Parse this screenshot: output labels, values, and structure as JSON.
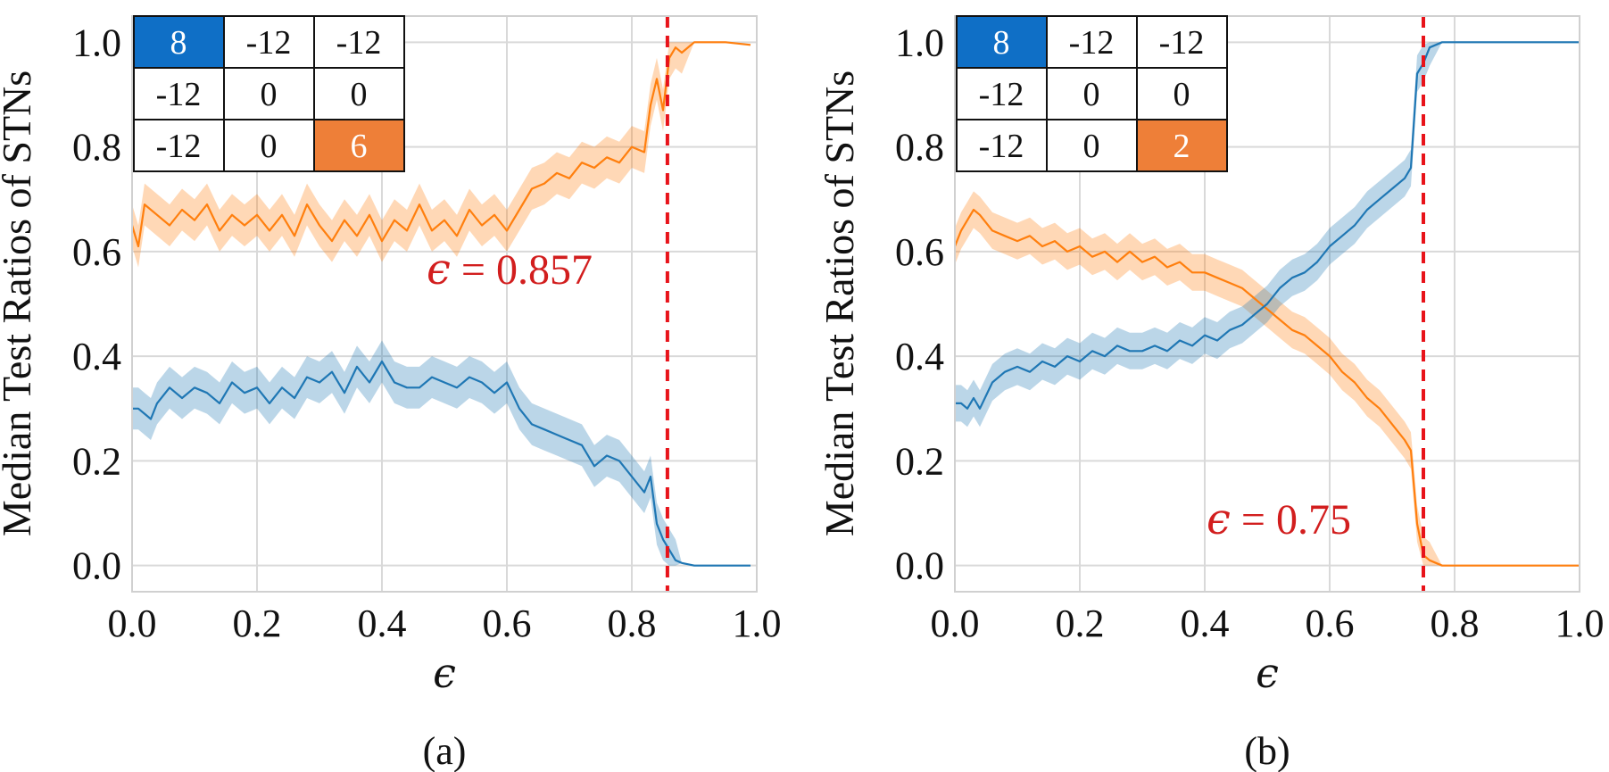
{
  "colors": {
    "blue": "#1f77b4",
    "orange": "#ff7f0e",
    "threshold": "#e8131a",
    "annotation": "#d21e1e",
    "cell_blue": "#0f6fc6",
    "cell_orange": "#ee7f38",
    "grid": "#d9d9d9"
  },
  "chart_data": [
    {
      "type": "line",
      "panel_label": "(a)",
      "xlabel": "ϵ",
      "ylabel": "Median Test Ratios of STNs",
      "xlim": [
        0.0,
        1.0
      ],
      "ylim": [
        -0.05,
        1.05
      ],
      "xticks": [
        0.0,
        0.2,
        0.4,
        0.6,
        0.8,
        1.0
      ],
      "xtick_labels": [
        "0.0",
        "0.2",
        "0.4",
        "0.6",
        "0.8",
        "1.0"
      ],
      "yticks": [
        0.0,
        0.2,
        0.4,
        0.6,
        0.8,
        1.0
      ],
      "ytick_labels": [
        "0.0",
        "0.2",
        "0.4",
        "0.6",
        "0.8",
        "1.0"
      ],
      "grid": true,
      "threshold": {
        "x": 0.857,
        "label": "ϵ = 0.857",
        "eps_text": "ϵ",
        "value_text": " = 0.857"
      },
      "payoff_matrix": [
        [
          "8",
          "-12",
          "-12"
        ],
        [
          "-12",
          "0",
          "0"
        ],
        [
          "-12",
          "0",
          "6"
        ]
      ],
      "highlighted_cells": {
        "blue": [
          0,
          0
        ],
        "orange": [
          2,
          2
        ]
      },
      "band_halfwidth": 0.04,
      "series": [
        {
          "name": "orange",
          "color": "#ff7f0e",
          "points": [
            [
              0.0,
              0.65
            ],
            [
              0.01,
              0.61
            ],
            [
              0.02,
              0.69
            ],
            [
              0.04,
              0.67
            ],
            [
              0.06,
              0.65
            ],
            [
              0.08,
              0.68
            ],
            [
              0.1,
              0.66
            ],
            [
              0.12,
              0.69
            ],
            [
              0.14,
              0.64
            ],
            [
              0.16,
              0.67
            ],
            [
              0.18,
              0.65
            ],
            [
              0.2,
              0.67
            ],
            [
              0.22,
              0.64
            ],
            [
              0.24,
              0.67
            ],
            [
              0.26,
              0.63
            ],
            [
              0.28,
              0.69
            ],
            [
              0.3,
              0.65
            ],
            [
              0.32,
              0.62
            ],
            [
              0.34,
              0.66
            ],
            [
              0.36,
              0.63
            ],
            [
              0.38,
              0.67
            ],
            [
              0.4,
              0.62
            ],
            [
              0.42,
              0.66
            ],
            [
              0.44,
              0.64
            ],
            [
              0.46,
              0.69
            ],
            [
              0.48,
              0.64
            ],
            [
              0.5,
              0.66
            ],
            [
              0.52,
              0.63
            ],
            [
              0.54,
              0.68
            ],
            [
              0.56,
              0.65
            ],
            [
              0.58,
              0.67
            ],
            [
              0.6,
              0.64
            ],
            [
              0.62,
              0.68
            ],
            [
              0.64,
              0.72
            ],
            [
              0.66,
              0.73
            ],
            [
              0.68,
              0.75
            ],
            [
              0.7,
              0.74
            ],
            [
              0.72,
              0.77
            ],
            [
              0.74,
              0.76
            ],
            [
              0.76,
              0.78
            ],
            [
              0.78,
              0.77
            ],
            [
              0.8,
              0.8
            ],
            [
              0.82,
              0.79
            ],
            [
              0.83,
              0.88
            ],
            [
              0.84,
              0.93
            ],
            [
              0.85,
              0.87
            ],
            [
              0.86,
              0.97
            ],
            [
              0.87,
              0.99
            ],
            [
              0.88,
              0.98
            ],
            [
              0.9,
              1.0
            ],
            [
              0.92,
              1.0
            ],
            [
              0.95,
              1.0
            ],
            [
              0.99,
              0.995
            ]
          ]
        },
        {
          "name": "blue",
          "color": "#1f77b4",
          "points": [
            [
              0.0,
              0.3
            ],
            [
              0.01,
              0.3
            ],
            [
              0.02,
              0.29
            ],
            [
              0.03,
              0.28
            ],
            [
              0.04,
              0.31
            ],
            [
              0.06,
              0.34
            ],
            [
              0.08,
              0.32
            ],
            [
              0.1,
              0.34
            ],
            [
              0.12,
              0.33
            ],
            [
              0.14,
              0.31
            ],
            [
              0.16,
              0.35
            ],
            [
              0.18,
              0.33
            ],
            [
              0.2,
              0.34
            ],
            [
              0.22,
              0.31
            ],
            [
              0.24,
              0.34
            ],
            [
              0.26,
              0.32
            ],
            [
              0.28,
              0.36
            ],
            [
              0.3,
              0.35
            ],
            [
              0.32,
              0.37
            ],
            [
              0.34,
              0.33
            ],
            [
              0.36,
              0.38
            ],
            [
              0.38,
              0.35
            ],
            [
              0.4,
              0.39
            ],
            [
              0.42,
              0.35
            ],
            [
              0.44,
              0.34
            ],
            [
              0.46,
              0.34
            ],
            [
              0.48,
              0.36
            ],
            [
              0.5,
              0.35
            ],
            [
              0.52,
              0.34
            ],
            [
              0.54,
              0.36
            ],
            [
              0.56,
              0.35
            ],
            [
              0.58,
              0.33
            ],
            [
              0.6,
              0.35
            ],
            [
              0.62,
              0.3
            ],
            [
              0.64,
              0.27
            ],
            [
              0.66,
              0.26
            ],
            [
              0.68,
              0.25
            ],
            [
              0.7,
              0.24
            ],
            [
              0.72,
              0.23
            ],
            [
              0.74,
              0.19
            ],
            [
              0.76,
              0.21
            ],
            [
              0.78,
              0.2
            ],
            [
              0.8,
              0.17
            ],
            [
              0.82,
              0.14
            ],
            [
              0.83,
              0.17
            ],
            [
              0.84,
              0.08
            ],
            [
              0.85,
              0.05
            ],
            [
              0.86,
              0.03
            ],
            [
              0.87,
              0.01
            ],
            [
              0.88,
              0.005
            ],
            [
              0.9,
              0.0
            ],
            [
              0.92,
              0.0
            ],
            [
              0.95,
              0.0
            ],
            [
              0.99,
              0.0
            ]
          ]
        }
      ]
    },
    {
      "type": "line",
      "panel_label": "(b)",
      "xlabel": "ϵ",
      "ylabel": "Median Test Ratios of STNs",
      "xlim": [
        0.0,
        1.0
      ],
      "ylim": [
        -0.05,
        1.05
      ],
      "xticks": [
        0.0,
        0.2,
        0.4,
        0.6,
        0.8,
        1.0
      ],
      "xtick_labels": [
        "0.0",
        "0.2",
        "0.4",
        "0.6",
        "0.8",
        "1.0"
      ],
      "yticks": [
        0.0,
        0.2,
        0.4,
        0.6,
        0.8,
        1.0
      ],
      "ytick_labels": [
        "0.0",
        "0.2",
        "0.4",
        "0.6",
        "0.8",
        "1.0"
      ],
      "grid": true,
      "threshold": {
        "x": 0.75,
        "label": "ϵ = 0.75",
        "eps_text": "ϵ",
        "value_text": " = 0.75"
      },
      "payoff_matrix": [
        [
          "8",
          "-12",
          "-12"
        ],
        [
          "-12",
          "0",
          "0"
        ],
        [
          "-12",
          "0",
          "2"
        ]
      ],
      "highlighted_cells": {
        "blue": [
          0,
          0
        ],
        "orange": [
          2,
          2
        ]
      },
      "band_halfwidth": 0.035,
      "series": [
        {
          "name": "orange",
          "color": "#ff7f0e",
          "points": [
            [
              0.0,
              0.61
            ],
            [
              0.01,
              0.64
            ],
            [
              0.02,
              0.66
            ],
            [
              0.03,
              0.68
            ],
            [
              0.04,
              0.67
            ],
            [
              0.06,
              0.64
            ],
            [
              0.08,
              0.63
            ],
            [
              0.1,
              0.62
            ],
            [
              0.12,
              0.63
            ],
            [
              0.14,
              0.61
            ],
            [
              0.16,
              0.62
            ],
            [
              0.18,
              0.6
            ],
            [
              0.2,
              0.61
            ],
            [
              0.22,
              0.59
            ],
            [
              0.24,
              0.6
            ],
            [
              0.26,
              0.58
            ],
            [
              0.28,
              0.6
            ],
            [
              0.3,
              0.58
            ],
            [
              0.32,
              0.59
            ],
            [
              0.34,
              0.57
            ],
            [
              0.36,
              0.58
            ],
            [
              0.38,
              0.56
            ],
            [
              0.4,
              0.56
            ],
            [
              0.42,
              0.55
            ],
            [
              0.44,
              0.54
            ],
            [
              0.46,
              0.53
            ],
            [
              0.48,
              0.51
            ],
            [
              0.5,
              0.49
            ],
            [
              0.52,
              0.47
            ],
            [
              0.54,
              0.45
            ],
            [
              0.56,
              0.44
            ],
            [
              0.58,
              0.42
            ],
            [
              0.6,
              0.4
            ],
            [
              0.62,
              0.37
            ],
            [
              0.64,
              0.35
            ],
            [
              0.66,
              0.32
            ],
            [
              0.68,
              0.3
            ],
            [
              0.7,
              0.27
            ],
            [
              0.72,
              0.24
            ],
            [
              0.73,
              0.22
            ],
            [
              0.74,
              0.08
            ],
            [
              0.75,
              0.02
            ],
            [
              0.76,
              0.01
            ],
            [
              0.78,
              0.0
            ],
            [
              0.8,
              0.0
            ],
            [
              0.9,
              0.0
            ],
            [
              1.0,
              0.0
            ]
          ]
        },
        {
          "name": "blue",
          "color": "#1f77b4",
          "points": [
            [
              0.0,
              0.31
            ],
            [
              0.01,
              0.31
            ],
            [
              0.02,
              0.3
            ],
            [
              0.03,
              0.32
            ],
            [
              0.04,
              0.3
            ],
            [
              0.06,
              0.35
            ],
            [
              0.08,
              0.37
            ],
            [
              0.1,
              0.38
            ],
            [
              0.12,
              0.37
            ],
            [
              0.14,
              0.39
            ],
            [
              0.16,
              0.38
            ],
            [
              0.18,
              0.4
            ],
            [
              0.2,
              0.39
            ],
            [
              0.22,
              0.41
            ],
            [
              0.24,
              0.4
            ],
            [
              0.26,
              0.42
            ],
            [
              0.28,
              0.41
            ],
            [
              0.3,
              0.41
            ],
            [
              0.32,
              0.42
            ],
            [
              0.34,
              0.41
            ],
            [
              0.36,
              0.43
            ],
            [
              0.38,
              0.42
            ],
            [
              0.4,
              0.44
            ],
            [
              0.42,
              0.43
            ],
            [
              0.44,
              0.45
            ],
            [
              0.46,
              0.46
            ],
            [
              0.48,
              0.48
            ],
            [
              0.5,
              0.5
            ],
            [
              0.52,
              0.53
            ],
            [
              0.54,
              0.55
            ],
            [
              0.56,
              0.56
            ],
            [
              0.58,
              0.58
            ],
            [
              0.6,
              0.61
            ],
            [
              0.62,
              0.63
            ],
            [
              0.64,
              0.65
            ],
            [
              0.66,
              0.68
            ],
            [
              0.68,
              0.7
            ],
            [
              0.7,
              0.72
            ],
            [
              0.72,
              0.74
            ],
            [
              0.73,
              0.76
            ],
            [
              0.74,
              0.94
            ],
            [
              0.75,
              0.96
            ],
            [
              0.76,
              0.99
            ],
            [
              0.78,
              1.0
            ],
            [
              0.8,
              1.0
            ],
            [
              0.9,
              1.0
            ],
            [
              1.0,
              1.0
            ]
          ]
        }
      ]
    }
  ]
}
